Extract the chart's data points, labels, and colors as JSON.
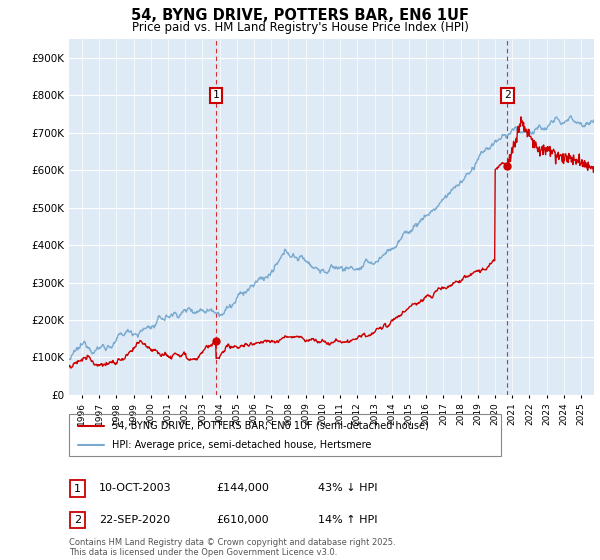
{
  "title": "54, BYNG DRIVE, POTTERS BAR, EN6 1UF",
  "subtitle": "Price paid vs. HM Land Registry's House Price Index (HPI)",
  "legend_line1": "54, BYNG DRIVE, POTTERS BAR, EN6 1UF (semi-detached house)",
  "legend_line2": "HPI: Average price, semi-detached house, Hertsmere",
  "annotation1_date": "10-OCT-2003",
  "annotation1_price": "£144,000",
  "annotation1_hpi": "43% ↓ HPI",
  "annotation2_date": "22-SEP-2020",
  "annotation2_price": "£610,000",
  "annotation2_hpi": "14% ↑ HPI",
  "footer": "Contains HM Land Registry data © Crown copyright and database right 2025.\nThis data is licensed under the Open Government Licence v3.0.",
  "hpi_color": "#7aaad0",
  "price_color": "#cc0000",
  "chart_bg": "#deeaf5",
  "ylim": [
    0,
    950000
  ],
  "yticks": [
    0,
    100000,
    200000,
    300000,
    400000,
    500000,
    600000,
    700000,
    800000,
    900000
  ],
  "xlim_start": 1995.25,
  "xlim_end": 2025.75,
  "sale1_x": 2003.78,
  "sale1_y": 144000,
  "sale2_x": 2020.72,
  "sale2_y": 610000
}
